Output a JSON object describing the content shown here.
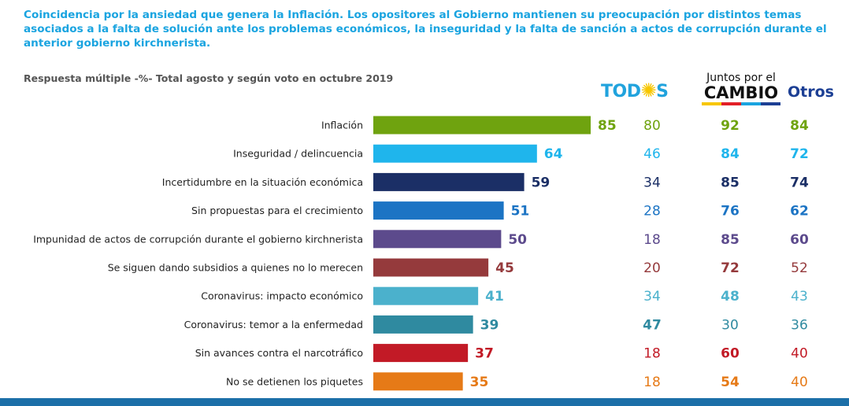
{
  "subtitle": "Coincidencia por la ansiedad que genera la Inflación. Los opositores al Gobierno mantienen su preocupación por distintos temas asociados a la falta de solución ante los problemas económicos, la inseguridad y la falta de sanción a actos de corrupción durante el anterior gobierno kirchnerista.",
  "note": "Respuesta múltiple -%- Total agosto y según voto en octubre 2019",
  "logos": {
    "todos": "TOD",
    "todos_end": "S",
    "juntos_line1": "Juntos por el",
    "juntos_line2": "CAMBIO",
    "otros": "Otros"
  },
  "chart_data": {
    "type": "bar",
    "orientation": "horizontal",
    "xlim": [
      0,
      100
    ],
    "categories": [
      "Inflación",
      "Inseguridad / delincuencia",
      "Incertidumbre en la situación económica",
      "Sin propuestas para el crecimiento",
      "Impunidad de actos de corrupción durante el gobierno kirchnerista",
      "Se siguen dando subsidios a quienes no lo merecen",
      "Coronavirus: impacto económico",
      "Coronavirus: temor a la enfermedad",
      "Sin avances contra el narcotráfico",
      "No se detienen los piquetes"
    ],
    "values": [
      85,
      64,
      59,
      51,
      50,
      45,
      41,
      39,
      37,
      35
    ],
    "bar_colors": [
      "#6fa30f",
      "#1fb5ec",
      "#1b2f66",
      "#1c74c4",
      "#5c4a8c",
      "#953a3c",
      "#4bb1cc",
      "#2f8aa0",
      "#c21a26",
      "#e67a17"
    ],
    "series": [
      {
        "name": "TODOS",
        "values": [
          80,
          46,
          34,
          28,
          18,
          20,
          34,
          47,
          18,
          18
        ],
        "bold": [
          false,
          false,
          false,
          false,
          false,
          false,
          false,
          true,
          false,
          false
        ]
      },
      {
        "name": "Juntos por el CAMBIO",
        "values": [
          92,
          84,
          85,
          76,
          85,
          72,
          48,
          30,
          60,
          54
        ],
        "bold": [
          true,
          true,
          true,
          true,
          true,
          true,
          true,
          false,
          true,
          true
        ]
      },
      {
        "name": "Otros",
        "values": [
          84,
          72,
          74,
          62,
          60,
          52,
          43,
          36,
          40,
          40
        ],
        "bold": [
          true,
          true,
          true,
          true,
          true,
          false,
          false,
          false,
          false,
          false
        ]
      }
    ]
  }
}
